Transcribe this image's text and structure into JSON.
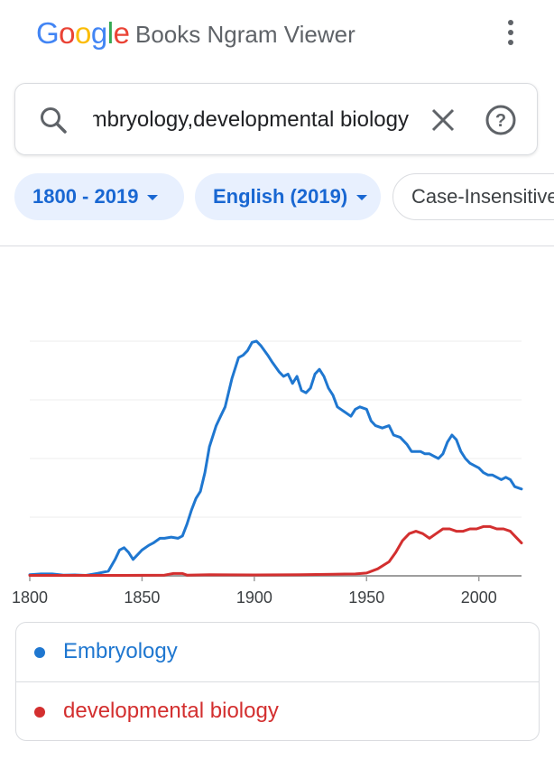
{
  "header": {
    "logo_letters": [
      {
        "ch": "G",
        "color": "#4285f4"
      },
      {
        "ch": "o",
        "color": "#ea4335"
      },
      {
        "ch": "o",
        "color": "#fbbc05"
      },
      {
        "ch": "g",
        "color": "#4285f4"
      },
      {
        "ch": "l",
        "color": "#34a853"
      },
      {
        "ch": "e",
        "color": "#ea4335"
      }
    ],
    "title": "Books Ngram Viewer",
    "menu_icon": "more-vertical-icon"
  },
  "search": {
    "value": "Embryology,developmental biology",
    "search_icon": "search-icon",
    "clear_icon": "close-icon",
    "help_icon": "help-circle-icon"
  },
  "chips": {
    "year_range": "1800 - 2019",
    "corpus": "English (2019)",
    "case": "Case-Insensitive"
  },
  "colors": {
    "accent": "#1967d2",
    "series_1": "#1f77d0",
    "series_2": "#d32f2f"
  },
  "chart_data": {
    "type": "line",
    "xlim": [
      1800,
      2019
    ],
    "ylim": [
      0,
      1
    ],
    "x_ticks": [
      1800,
      1850,
      1900,
      1950,
      2000
    ],
    "grid": true,
    "series": [
      {
        "name": "Embryology",
        "color": "#1f77d0",
        "points": [
          [
            1800,
            0.005
          ],
          [
            1805,
            0.008
          ],
          [
            1810,
            0.008
          ],
          [
            1815,
            0.003
          ],
          [
            1820,
            0.004
          ],
          [
            1825,
            0.002
          ],
          [
            1830,
            0.01
          ],
          [
            1835,
            0.02
          ],
          [
            1838,
            0.07
          ],
          [
            1840,
            0.11
          ],
          [
            1842,
            0.12
          ],
          [
            1844,
            0.1
          ],
          [
            1846,
            0.07
          ],
          [
            1848,
            0.09
          ],
          [
            1850,
            0.11
          ],
          [
            1853,
            0.13
          ],
          [
            1855,
            0.14
          ],
          [
            1858,
            0.16
          ],
          [
            1860,
            0.16
          ],
          [
            1863,
            0.165
          ],
          [
            1866,
            0.16
          ],
          [
            1868,
            0.17
          ],
          [
            1870,
            0.22
          ],
          [
            1872,
            0.28
          ],
          [
            1874,
            0.33
          ],
          [
            1876,
            0.36
          ],
          [
            1878,
            0.44
          ],
          [
            1880,
            0.55
          ],
          [
            1883,
            0.64
          ],
          [
            1885,
            0.68
          ],
          [
            1887,
            0.72
          ],
          [
            1890,
            0.84
          ],
          [
            1893,
            0.93
          ],
          [
            1895,
            0.94
          ],
          [
            1897,
            0.96
          ],
          [
            1899,
            0.995
          ],
          [
            1901,
            1.0
          ],
          [
            1903,
            0.98
          ],
          [
            1906,
            0.94
          ],
          [
            1908,
            0.91
          ],
          [
            1911,
            0.87
          ],
          [
            1913,
            0.85
          ],
          [
            1915,
            0.86
          ],
          [
            1917,
            0.82
          ],
          [
            1919,
            0.85
          ],
          [
            1921,
            0.79
          ],
          [
            1923,
            0.78
          ],
          [
            1925,
            0.8
          ],
          [
            1927,
            0.86
          ],
          [
            1929,
            0.88
          ],
          [
            1931,
            0.85
          ],
          [
            1933,
            0.8
          ],
          [
            1935,
            0.77
          ],
          [
            1937,
            0.72
          ],
          [
            1940,
            0.7
          ],
          [
            1943,
            0.68
          ],
          [
            1945,
            0.71
          ],
          [
            1947,
            0.72
          ],
          [
            1950,
            0.71
          ],
          [
            1952,
            0.66
          ],
          [
            1954,
            0.64
          ],
          [
            1957,
            0.63
          ],
          [
            1960,
            0.64
          ],
          [
            1962,
            0.6
          ],
          [
            1965,
            0.59
          ],
          [
            1968,
            0.56
          ],
          [
            1970,
            0.53
          ],
          [
            1972,
            0.53
          ],
          [
            1974,
            0.53
          ],
          [
            1976,
            0.52
          ],
          [
            1978,
            0.52
          ],
          [
            1980,
            0.51
          ],
          [
            1982,
            0.5
          ],
          [
            1984,
            0.52
          ],
          [
            1986,
            0.57
          ],
          [
            1988,
            0.6
          ],
          [
            1990,
            0.58
          ],
          [
            1992,
            0.53
          ],
          [
            1994,
            0.5
          ],
          [
            1996,
            0.48
          ],
          [
            1998,
            0.47
          ],
          [
            2000,
            0.46
          ],
          [
            2002,
            0.44
          ],
          [
            2004,
            0.43
          ],
          [
            2006,
            0.43
          ],
          [
            2008,
            0.42
          ],
          [
            2010,
            0.41
          ],
          [
            2012,
            0.42
          ],
          [
            2014,
            0.41
          ],
          [
            2016,
            0.38
          ],
          [
            2019,
            0.37
          ]
        ]
      },
      {
        "name": "developmental biology",
        "color": "#d32f2f",
        "points": [
          [
            1800,
            0.002
          ],
          [
            1820,
            0.002
          ],
          [
            1840,
            0.002
          ],
          [
            1860,
            0.003
          ],
          [
            1864,
            0.01
          ],
          [
            1868,
            0.01
          ],
          [
            1870,
            0.003
          ],
          [
            1880,
            0.005
          ],
          [
            1900,
            0.004
          ],
          [
            1920,
            0.005
          ],
          [
            1935,
            0.007
          ],
          [
            1945,
            0.008
          ],
          [
            1950,
            0.012
          ],
          [
            1955,
            0.03
          ],
          [
            1960,
            0.06
          ],
          [
            1963,
            0.1
          ],
          [
            1966,
            0.15
          ],
          [
            1969,
            0.18
          ],
          [
            1972,
            0.19
          ],
          [
            1975,
            0.18
          ],
          [
            1978,
            0.16
          ],
          [
            1981,
            0.18
          ],
          [
            1984,
            0.2
          ],
          [
            1987,
            0.2
          ],
          [
            1990,
            0.19
          ],
          [
            1993,
            0.19
          ],
          [
            1996,
            0.2
          ],
          [
            1999,
            0.2
          ],
          [
            2002,
            0.21
          ],
          [
            2005,
            0.21
          ],
          [
            2008,
            0.2
          ],
          [
            2011,
            0.2
          ],
          [
            2014,
            0.19
          ],
          [
            2016,
            0.17
          ],
          [
            2019,
            0.14
          ]
        ]
      }
    ]
  }
}
